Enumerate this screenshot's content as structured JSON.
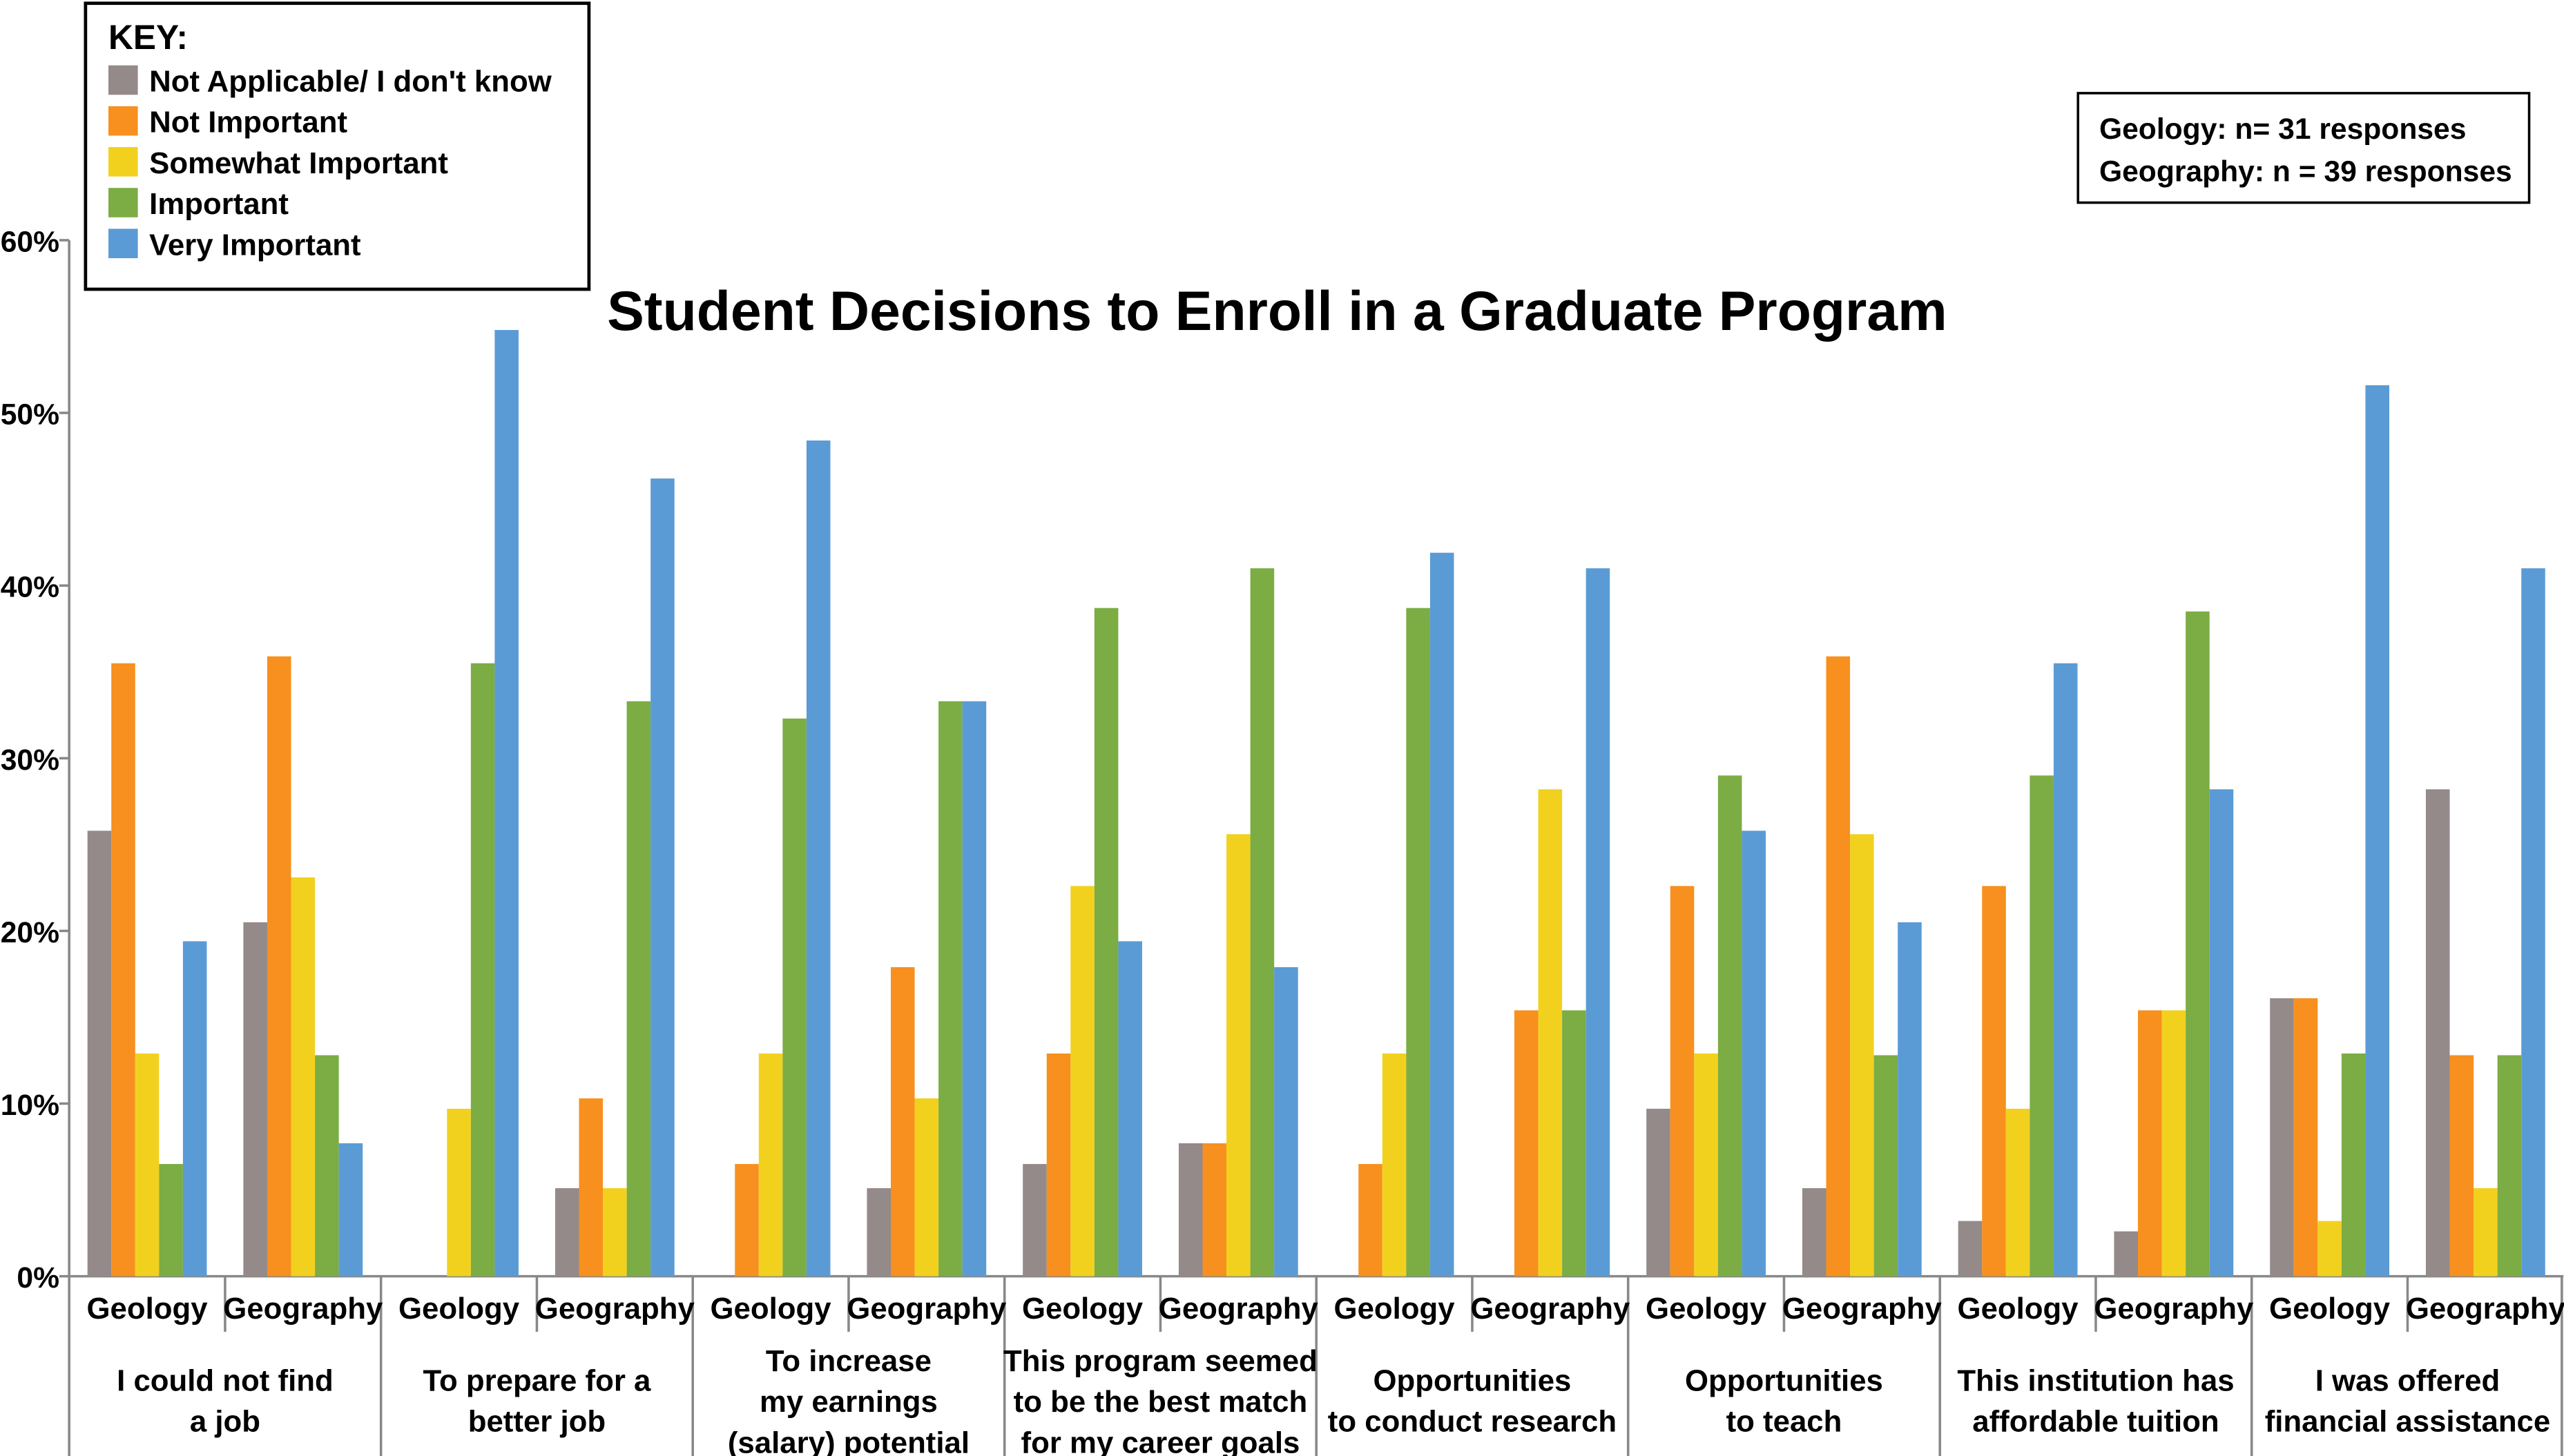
{
  "chart_data": {
    "type": "bar",
    "title": "Student Decisions to Enroll in a Graduate Program",
    "ylim": [
      0,
      60
    ],
    "yticks": [
      "0%",
      "10%",
      "20%",
      "30%",
      "40%",
      "50%",
      "60%"
    ],
    "grid": false,
    "legend": {
      "title": "KEY:",
      "placement": "top-left",
      "entries": [
        "Not Applicable/ I don't know",
        "Not Important",
        "Somewhat Important",
        "Important",
        "Very Important"
      ]
    },
    "note_lines": [
      "Geology: n= 31 responses",
      "Geography: n = 39 responses"
    ],
    "colors": [
      "#948A89",
      "#F7901E",
      "#F2D11E",
      "#7CAC44",
      "#5B9BD5"
    ],
    "categories": [
      {
        "label": [
          "I could not find",
          "a job"
        ],
        "groups": [
          {
            "name": "Geology",
            "values": [
              25.8,
              35.5,
              12.9,
              6.5,
              19.4
            ]
          },
          {
            "name": "Geography",
            "values": [
              20.5,
              35.9,
              23.1,
              12.8,
              7.7
            ]
          }
        ]
      },
      {
        "label": [
          "To prepare for a",
          "better job"
        ],
        "groups": [
          {
            "name": "Geology",
            "values": [
              0,
              0,
              9.7,
              35.5,
              54.8
            ]
          },
          {
            "name": "Geography",
            "values": [
              5.1,
              10.3,
              5.1,
              33.3,
              46.2
            ]
          }
        ]
      },
      {
        "label": [
          "To increase",
          "my earnings",
          "(salary) potential"
        ],
        "groups": [
          {
            "name": "Geology",
            "values": [
              0,
              6.5,
              12.9,
              32.3,
              48.4
            ]
          },
          {
            "name": "Geography",
            "values": [
              5.1,
              17.9,
              10.3,
              33.3,
              33.3
            ]
          }
        ]
      },
      {
        "label": [
          "This program seemed",
          "to be the best match",
          "for my career goals"
        ],
        "groups": [
          {
            "name": "Geology",
            "values": [
              6.5,
              12.9,
              22.6,
              38.7,
              19.4
            ]
          },
          {
            "name": "Geography",
            "values": [
              7.7,
              7.7,
              25.6,
              41.0,
              17.9
            ]
          }
        ]
      },
      {
        "label": [
          "Opportunities",
          "to conduct research"
        ],
        "groups": [
          {
            "name": "Geology",
            "values": [
              0,
              6.5,
              12.9,
              38.7,
              41.9
            ]
          },
          {
            "name": "Geography",
            "values": [
              0,
              15.4,
              28.2,
              15.4,
              41.0
            ]
          }
        ]
      },
      {
        "label": [
          "Opportunities",
          "to teach"
        ],
        "groups": [
          {
            "name": "Geology",
            "values": [
              9.7,
              22.6,
              12.9,
              29.0,
              25.8
            ]
          },
          {
            "name": "Geography",
            "values": [
              5.1,
              35.9,
              25.6,
              12.8,
              20.5
            ]
          }
        ]
      },
      {
        "label": [
          "This institution has",
          "affordable tuition"
        ],
        "groups": [
          {
            "name": "Geology",
            "values": [
              3.2,
              22.6,
              9.7,
              29.0,
              35.5
            ]
          },
          {
            "name": "Geography",
            "values": [
              2.6,
              15.4,
              15.4,
              38.5,
              28.2
            ]
          }
        ]
      },
      {
        "label": [
          "I was offered",
          "financial assistance"
        ],
        "groups": [
          {
            "name": "Geology",
            "values": [
              16.1,
              16.1,
              3.2,
              12.9,
              51.6
            ]
          },
          {
            "name": "Geography",
            "values": [
              28.2,
              12.8,
              5.1,
              12.8,
              41.0
            ]
          }
        ]
      }
    ]
  }
}
